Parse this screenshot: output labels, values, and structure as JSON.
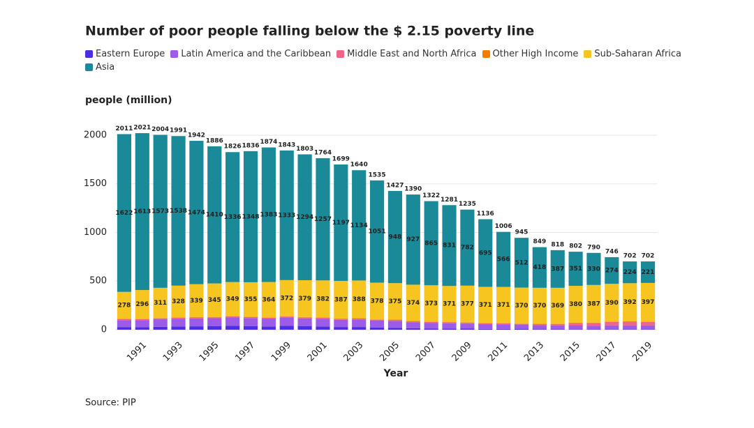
{
  "chart_data": {
    "type": "stacked-bar",
    "title": "Number of poor people falling below the $ 2.15 poverty line",
    "y_label": "people (million)",
    "x_label": "Year",
    "source": "Source: PIP",
    "categories": [
      null,
      "1991",
      null,
      "1993",
      null,
      "1995",
      null,
      "1997",
      null,
      "1999",
      null,
      "2001",
      null,
      "2003",
      null,
      "2005",
      null,
      "2007",
      null,
      "2009",
      null,
      "2011",
      null,
      "2013",
      null,
      "2015",
      null,
      "2017",
      null,
      "2019"
    ],
    "series": [
      {
        "name": "Eastern Europe",
        "color": "#4b2fe0",
        "values": [
          25,
          27,
          30,
          33,
          35,
          36,
          40,
          36,
          34,
          40,
          36,
          33,
          28,
          28,
          22,
          20,
          15,
          13,
          12,
          11,
          9,
          8,
          7,
          6,
          6,
          5,
          5,
          5,
          5,
          5
        ]
      },
      {
        "name": "Latin America and the Caribbean",
        "color": "#9d5ce8",
        "values": [
          73,
          72,
          77,
          79,
          81,
          82,
          88,
          84,
          80,
          85,
          81,
          79,
          74,
          77,
          71,
          71,
          61,
          58,
          54,
          52,
          48,
          48,
          43,
          40,
          38,
          38,
          37,
          40,
          40,
          40
        ]
      },
      {
        "name": "Middle East and North Africa",
        "color": "#f0648a",
        "values": [
          10,
          10,
          10,
          10,
          10,
          10,
          10,
          10,
          10,
          10,
          10,
          10,
          10,
          10,
          10,
          10,
          10,
          10,
          10,
          10,
          10,
          10,
          10,
          12,
          15,
          25,
          28,
          34,
          38,
          36
        ]
      },
      {
        "name": "Other High Income",
        "color": "#f57c00",
        "values": [
          3,
          3,
          3,
          3,
          3,
          3,
          3,
          3,
          3,
          3,
          3,
          3,
          3,
          3,
          3,
          3,
          3,
          3,
          3,
          3,
          3,
          3,
          3,
          3,
          3,
          3,
          3,
          3,
          3,
          3
        ]
      },
      {
        "name": "Sub-Saharan Africa",
        "color": "#f7c520",
        "values": [
          278,
          296,
          311,
          328,
          339,
          345,
          349,
          355,
          364,
          372,
          379,
          382,
          387,
          388,
          378,
          375,
          374,
          373,
          371,
          377,
          371,
          371,
          370,
          370,
          369,
          380,
          387,
          390,
          392,
          397
        ]
      },
      {
        "name": "Asia",
        "color": "#1a8a98",
        "values": [
          1622,
          1613,
          1573,
          1538,
          1474,
          1410,
          1336,
          1348,
          1383,
          1333,
          1294,
          1257,
          1197,
          1134,
          1051,
          948,
          927,
          865,
          831,
          782,
          695,
          566,
          512,
          418,
          387,
          351,
          330,
          274,
          224,
          221
        ]
      }
    ],
    "totals": [
      2011,
      2021,
      2004,
      1991,
      1942,
      1886,
      1826,
      1836,
      1874,
      1843,
      1803,
      1764,
      1699,
      1640,
      1535,
      1427,
      1390,
      1322,
      1281,
      1235,
      1136,
      1006,
      945,
      849,
      818,
      802,
      790,
      746,
      702,
      702
    ],
    "ylim": [
      0,
      2100
    ],
    "yticks": [
      0,
      500,
      1000,
      1500,
      2000
    ],
    "grid": true
  }
}
